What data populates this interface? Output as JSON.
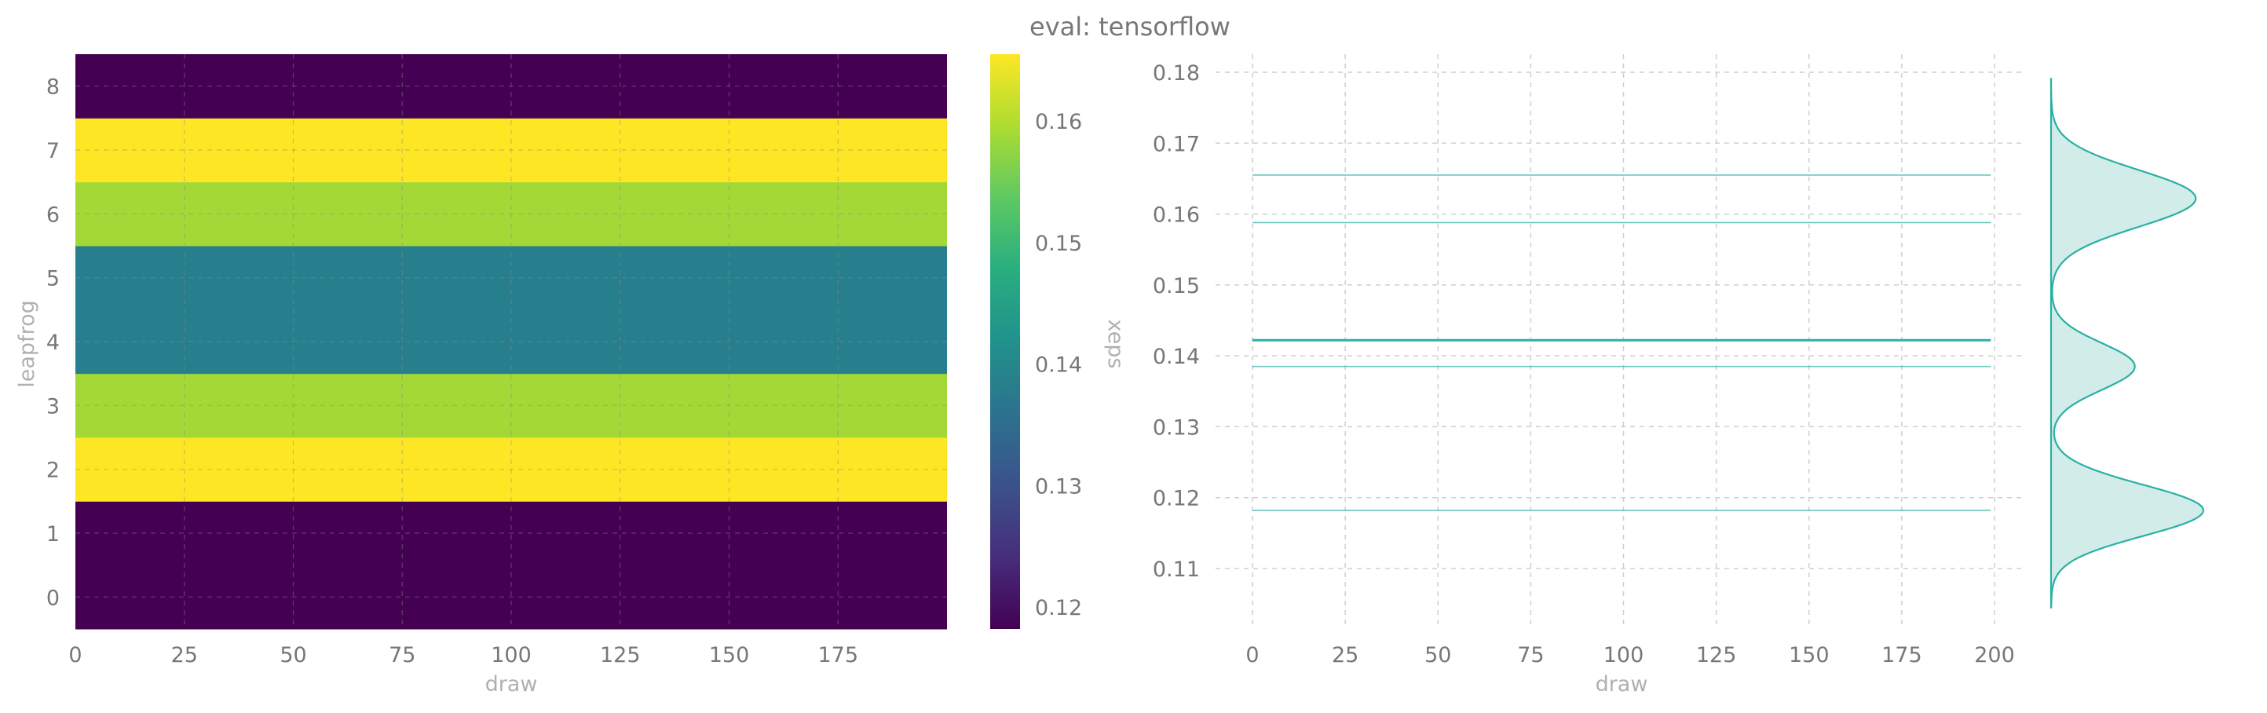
{
  "title": "eval: tensorflow",
  "chart_data": [
    {
      "type": "heatmap",
      "xlabel": "draw",
      "ylabel": "leapfrog",
      "x_ticks": [
        0,
        25,
        50,
        75,
        100,
        125,
        150,
        175
      ],
      "y_ticks": [
        0,
        1,
        2,
        3,
        4,
        5,
        6,
        7,
        8
      ],
      "x_range": [
        0,
        200
      ],
      "rows": [
        {
          "leapfrog": 0,
          "xeps": 0.1182
        },
        {
          "leapfrog": 1,
          "xeps": 0.1182
        },
        {
          "leapfrog": 2,
          "xeps": 0.1655
        },
        {
          "leapfrog": 3,
          "xeps": 0.1588
        },
        {
          "leapfrog": 4,
          "xeps": 0.1385
        },
        {
          "leapfrog": 5,
          "xeps": 0.1385
        },
        {
          "leapfrog": 6,
          "xeps": 0.1588
        },
        {
          "leapfrog": 7,
          "xeps": 0.1655
        },
        {
          "leapfrog": 8,
          "xeps": 0.1182
        }
      ],
      "colorbar": {
        "label": "xeps",
        "colormap": "viridis",
        "range": [
          0.1182,
          0.1655
        ],
        "ticks": [
          0.12,
          0.13,
          0.14,
          0.15,
          0.16
        ]
      }
    },
    {
      "type": "line",
      "xlabel": "draw",
      "ylabel": "",
      "xlim": [
        0,
        199
      ],
      "ylim": [
        0.1,
        0.18
      ],
      "x_ticks": [
        0,
        25,
        50,
        75,
        100,
        125,
        150,
        175,
        200
      ],
      "y_ticks": [
        0.11,
        0.12,
        0.13,
        0.14,
        0.15,
        0.16,
        0.17,
        0.18
      ],
      "color": "#2ab0a4",
      "series": [
        {
          "value": 0.1655,
          "width": 1
        },
        {
          "value": 0.1588,
          "width": 1
        },
        {
          "value": 0.1422,
          "width": 2
        },
        {
          "value": 0.1385,
          "width": 1
        },
        {
          "value": 0.1182,
          "width": 1
        }
      ],
      "marginal_density": {
        "type": "kde",
        "orientation": "vertical",
        "fill": "#d2ecea",
        "stroke": "#2ab0a4",
        "range": [
          0.1045,
          0.1792
        ],
        "components": [
          {
            "mean": 0.1182,
            "sd": 0.0036,
            "weight": 1.0
          },
          {
            "mean": 0.1385,
            "sd": 0.0033,
            "weight": 0.55
          },
          {
            "mean": 0.1622,
            "sd": 0.004,
            "weight": 0.95
          }
        ],
        "trough": 0.149
      }
    }
  ]
}
